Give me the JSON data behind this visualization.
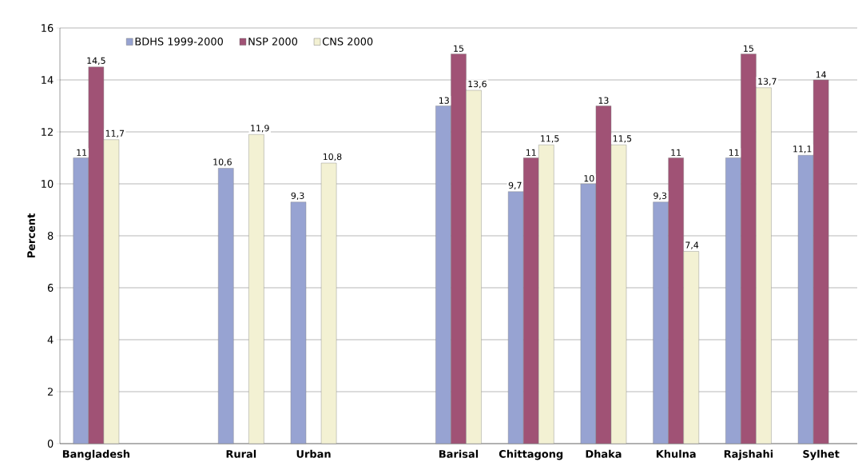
{
  "chart_data": {
    "type": "bar",
    "ylabel": "Percent",
    "categories": [
      "Bangladesh",
      null,
      "Rural",
      "Urban",
      null,
      "Barisal",
      "Chittagong",
      "Dhaka",
      "Khulna",
      "Rajshahi",
      "Sylhet"
    ],
    "series": [
      {
        "name": "BDHS 1999-2000",
        "color": "#97a3d2",
        "values": [
          11,
          null,
          10.6,
          9.3,
          null,
          13,
          9.7,
          10,
          9.3,
          11,
          11.1
        ],
        "value_labels": [
          "11",
          null,
          "10,6",
          "9,3",
          null,
          "13",
          "9,7",
          "10",
          "9,3",
          "11",
          "11,1"
        ]
      },
      {
        "name": "NSP 2000",
        "color": "#a05275",
        "values": [
          14.5,
          null,
          null,
          null,
          null,
          15,
          11,
          13,
          11,
          15,
          14
        ],
        "value_labels": [
          "14,5",
          null,
          null,
          null,
          null,
          "15",
          "11",
          "13",
          "11",
          "15",
          "14"
        ]
      },
      {
        "name": "CNS 2000",
        "color": "#f3f1d3",
        "values": [
          11.7,
          null,
          11.9,
          10.8,
          null,
          13.6,
          11.5,
          11.5,
          7.4,
          13.7,
          null
        ],
        "value_labels": [
          "11,7",
          null,
          "11,9",
          "10,8",
          null,
          "13,6",
          "11,5",
          "11,5",
          "7,4",
          "13,7",
          null
        ]
      }
    ],
    "ylim": [
      0,
      16
    ],
    "yticks": [
      0,
      2,
      4,
      6,
      8,
      10,
      12,
      14,
      16
    ],
    "grid": "y",
    "legend": "top left"
  }
}
